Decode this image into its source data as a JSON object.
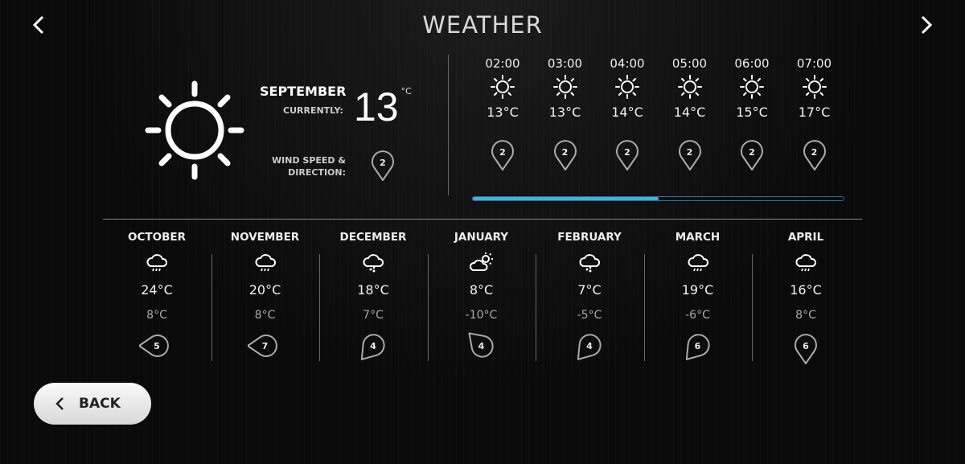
{
  "header": {
    "title": "WEATHER",
    "prev_icon": "chevron-left-icon",
    "next_icon": "chevron-right-icon"
  },
  "current": {
    "month": "SEPTEMBER",
    "currently_label": "CURRENTLY:",
    "temp": "13",
    "unit": "°C",
    "icon": "sun-icon",
    "wind_label_1": "WIND SPEED &",
    "wind_label_2": "DIRECTION:",
    "wind_speed": "2"
  },
  "hourly": [
    {
      "time": "02:00",
      "temp": "13°C",
      "wind": "2",
      "icon": "sun-icon"
    },
    {
      "time": "03:00",
      "temp": "13°C",
      "wind": "2",
      "icon": "sun-icon"
    },
    {
      "time": "04:00",
      "temp": "14°C",
      "wind": "2",
      "icon": "sun-icon"
    },
    {
      "time": "05:00",
      "temp": "14°C",
      "wind": "2",
      "icon": "sun-icon"
    },
    {
      "time": "06:00",
      "temp": "15°C",
      "wind": "2",
      "icon": "sun-icon"
    },
    {
      "time": "07:00",
      "temp": "17°C",
      "wind": "2",
      "icon": "sun-icon"
    }
  ],
  "hourly_scroll_percent": 50,
  "accent": "#3fb0e0",
  "monthly": [
    {
      "name": "OCTOBER",
      "high": "24°C",
      "low": "8°C",
      "wind": "5",
      "icon": "rain-cloud-icon",
      "wind_dir": "left"
    },
    {
      "name": "NOVEMBER",
      "high": "20°C",
      "low": "8°C",
      "wind": "7",
      "icon": "rain-cloud-icon",
      "wind_dir": "left"
    },
    {
      "name": "DECEMBER",
      "high": "18°C",
      "low": "7°C",
      "wind": "4",
      "icon": "snow-cloud-icon",
      "wind_dir": "down-left"
    },
    {
      "name": "JANUARY",
      "high": "8°C",
      "low": "-10°C",
      "wind": "4",
      "icon": "partly-cloudy-icon",
      "wind_dir": "up-left"
    },
    {
      "name": "FEBRUARY",
      "high": "7°C",
      "low": "-5°C",
      "wind": "4",
      "icon": "snow-cloud-icon",
      "wind_dir": "down-left"
    },
    {
      "name": "MARCH",
      "high": "19°C",
      "low": "-6°C",
      "wind": "6",
      "icon": "rain-cloud-icon",
      "wind_dir": "down-left"
    },
    {
      "name": "APRIL",
      "high": "16°C",
      "low": "8°C",
      "wind": "6",
      "icon": "rain-cloud-icon",
      "wind_dir": "down"
    }
  ],
  "back_label": "BACK"
}
